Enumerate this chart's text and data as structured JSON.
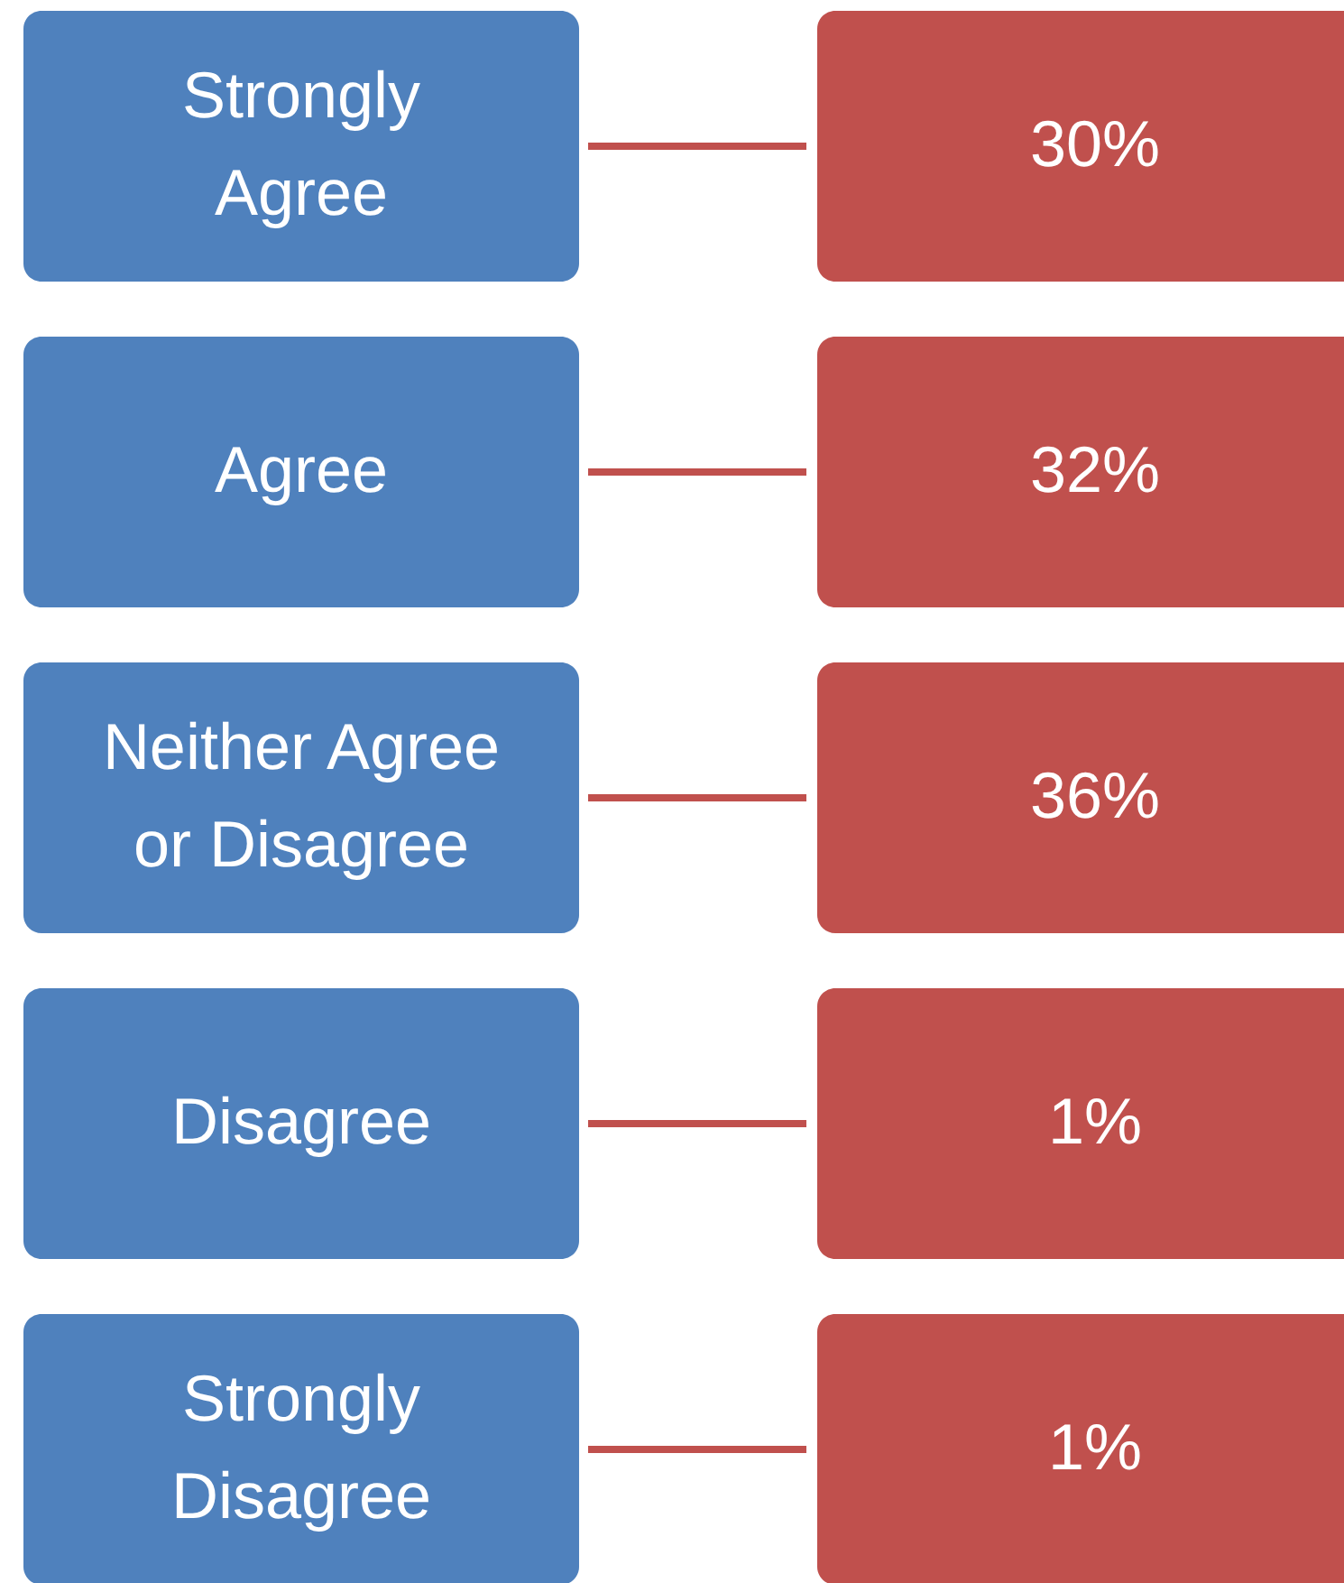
{
  "chart_data": {
    "type": "other",
    "categories": [
      "Strongly Agree",
      "Agree",
      "Neither Agree or Disagree",
      "Disagree",
      "Strongly Disagree"
    ],
    "series": [
      {
        "color": "#c0504d",
        "values": [
          30,
          32,
          36,
          1,
          1
        ],
        "value_labels": [
          "30%",
          "32%",
          "36%",
          "1%",
          "1%"
        ]
      }
    ]
  }
}
